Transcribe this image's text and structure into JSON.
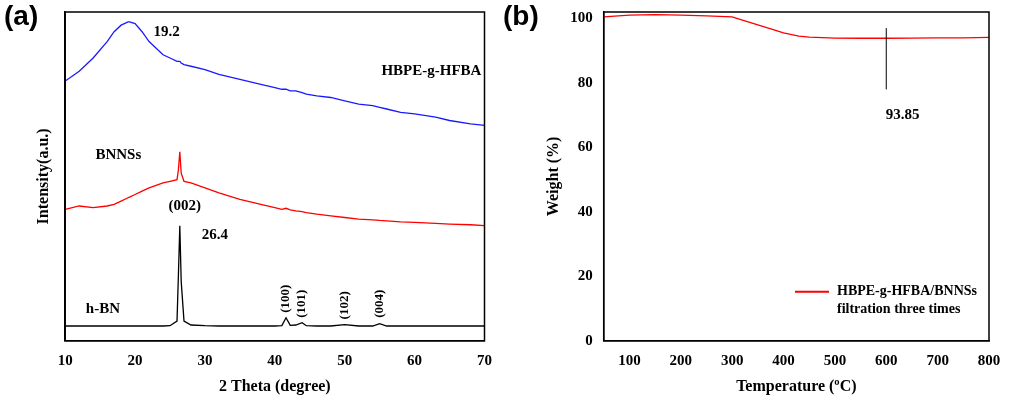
{
  "chart_data": [
    {
      "type": "line",
      "panel_label": "(a)",
      "x_label": "2 Theta (degree)",
      "y_label": "Intensity(a.u.)",
      "x": [
        10,
        12,
        14,
        16,
        17,
        18,
        19,
        19.2,
        20,
        21,
        22,
        24,
        25,
        26,
        26.2,
        26.4,
        26.6,
        27,
        28,
        30,
        32,
        35,
        38,
        40,
        41,
        41.6,
        42.2,
        43,
        43.9,
        44.5,
        46,
        48,
        50,
        52,
        54,
        55,
        56,
        58,
        60,
        63,
        65,
        68,
        70
      ],
      "series": [
        {
          "name": "HBPE-g-HFBA",
          "color": "#1a1aff",
          "label": {
            "x": 62.4,
            "y": 82
          },
          "values": [
            79,
            82,
            86,
            91,
            94,
            96,
            97,
            97,
            96.5,
            94,
            91,
            87,
            86,
            85,
            85,
            85,
            84.5,
            84,
            83.5,
            82.5,
            81,
            79.5,
            78,
            77,
            76.5,
            76.5,
            76,
            76,
            75.5,
            75,
            74.5,
            74,
            73,
            72,
            71.5,
            71,
            70.5,
            69.5,
            69,
            68,
            67,
            66,
            65.5
          ]
        },
        {
          "name": "BNNSs",
          "color": "#ff0000",
          "label": {
            "x": 17.6,
            "y": 56.5
          },
          "values": [
            40,
            41,
            40.5,
            41,
            41.5,
            42.5,
            43.5,
            43.7,
            44.5,
            45.5,
            46.5,
            48,
            48.5,
            49,
            52,
            57.5,
            51,
            48.5,
            48,
            46.5,
            45,
            43,
            41.5,
            40.5,
            40,
            40.3,
            39.8,
            39.5,
            39.3,
            39,
            38.5,
            38,
            37.5,
            37,
            36.8,
            36.6,
            36.5,
            36.2,
            36,
            35.7,
            35.5,
            35.3,
            35
          ]
        },
        {
          "name": "h-BN",
          "color": "#000000",
          "label": {
            "x": 15.4,
            "y": 9.5
          },
          "values": [
            4.5,
            4.5,
            4.5,
            4.5,
            4.5,
            4.5,
            4.5,
            4.5,
            4.5,
            4.5,
            4.5,
            4.5,
            4.6,
            6,
            20,
            35,
            18,
            6,
            4.8,
            4.6,
            4.5,
            4.5,
            4.5,
            4.5,
            4.6,
            7,
            4.7,
            4.8,
            5.5,
            4.6,
            4.5,
            4.5,
            4.9,
            4.5,
            4.5,
            5.2,
            4.5,
            4.5,
            4.5,
            4.5,
            4.5,
            4.5,
            4.5
          ]
        }
      ],
      "xlim": [
        10,
        70
      ],
      "xticks": [
        10,
        20,
        30,
        40,
        50,
        60,
        70
      ],
      "ylim": [
        0,
        100
      ],
      "tick_labels": "x",
      "grid": false,
      "annotations": [
        {
          "text": "19.2",
          "x": 24.5,
          "y": 94
        },
        {
          "text": "(002)",
          "x": 27.1,
          "y": 41
        },
        {
          "text": "26.4",
          "x": 31.4,
          "y": 32
        }
      ],
      "peak_labels": [
        {
          "text": "(100)",
          "x": 41.6,
          "y": 8.5
        },
        {
          "text": "(101)",
          "x": 43.9,
          "y": 7
        },
        {
          "text": "(102)",
          "x": 50,
          "y": 6.5
        },
        {
          "text": "(004)",
          "x": 55,
          "y": 7
        }
      ]
    },
    {
      "type": "line",
      "panel_label": "(b)",
      "x_label": "Temperature (ºC)",
      "y_label": "Weight (%)",
      "x": [
        50,
        100,
        150,
        200,
        250,
        300,
        320,
        350,
        380,
        400,
        430,
        450,
        500,
        550,
        600,
        650,
        700,
        750,
        800
      ],
      "series": [
        {
          "name": "HBPE-g-HFBA/BNNSs filtration three times",
          "color": "#ff0000",
          "values": [
            100.5,
            101,
            101.2,
            101,
            100.8,
            100.5,
            99.5,
            98,
            96.5,
            95.5,
            94.5,
            94.2,
            93.9,
            93.85,
            93.85,
            93.9,
            94,
            94,
            94.1
          ]
        }
      ],
      "xlim": [
        50,
        800
      ],
      "xticks": [
        100,
        200,
        300,
        400,
        500,
        600,
        700,
        800
      ],
      "ylim": [
        0,
        102
      ],
      "yticks": [
        0,
        20,
        40,
        60,
        80,
        100
      ],
      "grid": false,
      "legend": "lower right",
      "annotations": [
        {
          "text": "93.85",
          "x": 632,
          "y": 70
        }
      ],
      "vline": {
        "x": 600,
        "ymin": 78,
        "ymax": 97
      }
    }
  ]
}
